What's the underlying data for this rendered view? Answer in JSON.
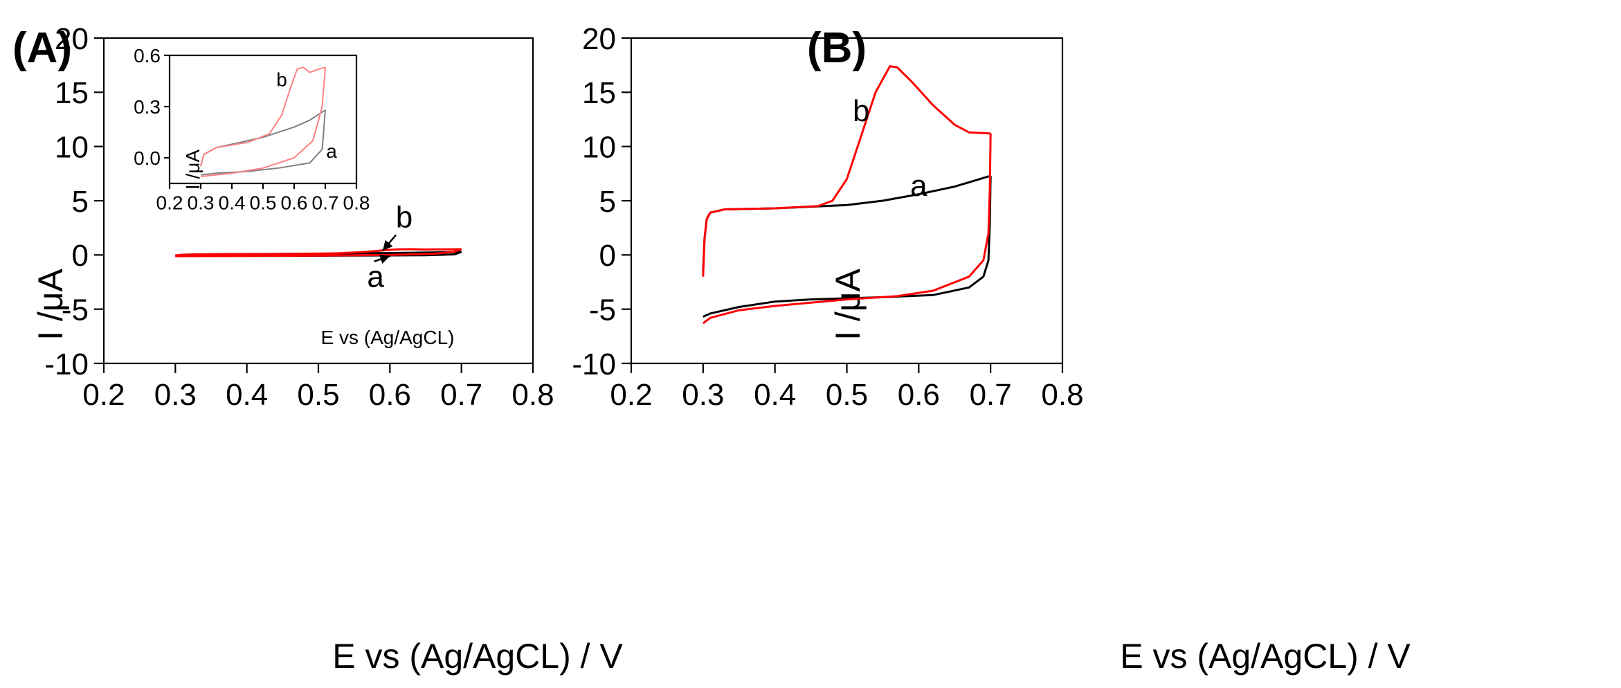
{
  "chart_data": [
    {
      "panel": "(A)",
      "type": "line",
      "xlabel": "E vs (Ag/AgCL) / V",
      "ylabel": "I /μA",
      "xlim": [
        0.2,
        0.8
      ],
      "ylim": [
        -10,
        20
      ],
      "xticks": [
        "0.2",
        "0.3",
        "0.4",
        "0.5",
        "0.6",
        "0.7",
        "0.8"
      ],
      "yticks": [
        "-10",
        "-5",
        "0",
        "5",
        "10",
        "15",
        "20"
      ],
      "series": [
        {
          "name": "a",
          "color": "#000000",
          "forward": [
            [
              0.3,
              -0.05
            ],
            [
              0.31,
              0.02
            ],
            [
              0.35,
              0.06
            ],
            [
              0.4,
              0.08
            ],
            [
              0.5,
              0.12
            ],
            [
              0.6,
              0.18
            ],
            [
              0.65,
              0.22
            ],
            [
              0.7,
              0.28
            ]
          ],
          "reverse": [
            [
              0.7,
              0.28
            ],
            [
              0.69,
              0.05
            ],
            [
              0.65,
              -0.03
            ],
            [
              0.55,
              -0.06
            ],
            [
              0.45,
              -0.08
            ],
            [
              0.35,
              -0.09
            ],
            [
              0.3,
              -0.1
            ]
          ]
        },
        {
          "name": "b",
          "color": "#ff0000",
          "forward": [
            [
              0.3,
              -0.05
            ],
            [
              0.31,
              0.02
            ],
            [
              0.35,
              0.06
            ],
            [
              0.45,
              0.09
            ],
            [
              0.52,
              0.14
            ],
            [
              0.56,
              0.25
            ],
            [
              0.59,
              0.42
            ],
            [
              0.61,
              0.52
            ],
            [
              0.63,
              0.53
            ],
            [
              0.65,
              0.5
            ],
            [
              0.68,
              0.52
            ],
            [
              0.7,
              0.53
            ]
          ],
          "reverse": [
            [
              0.7,
              0.53
            ],
            [
              0.69,
              0.3
            ],
            [
              0.66,
              0.1
            ],
            [
              0.6,
              0.0
            ],
            [
              0.5,
              -0.06
            ],
            [
              0.4,
              -0.09
            ],
            [
              0.3,
              -0.11
            ]
          ]
        }
      ],
      "annotations": [
        {
          "text": "b",
          "x": 0.62,
          "y": 3.5,
          "arrow_to": [
            0.59,
            0.4
          ]
        },
        {
          "text": "a",
          "x": 0.58,
          "y": -2.0,
          "arrow_to": [
            0.6,
            -0.1
          ]
        }
      ],
      "inset": {
        "xlabel": "E vs (Ag/AgCL)",
        "ylabel": "I /μA",
        "xlim": [
          0.2,
          0.8
        ],
        "ylim": [
          -0.15,
          0.6
        ],
        "xticks": [
          "0.2",
          "0.3",
          "0.4",
          "0.5",
          "0.6",
          "0.7",
          "0.8"
        ],
        "yticks": [
          "0.0",
          "0.3",
          "0.6"
        ],
        "series_colors": {
          "a": "#808080",
          "b": "#ff8080"
        },
        "labels": [
          {
            "text": "b",
            "x": 0.56,
            "y": 0.46
          },
          {
            "text": "a",
            "x": 0.72,
            "y": 0.04
          }
        ]
      }
    },
    {
      "panel": "(B)",
      "type": "line",
      "xlabel": "E vs (Ag/AgCL) / V",
      "ylabel": "I /μA",
      "xlim": [
        0.2,
        0.8
      ],
      "ylim": [
        -10,
        20
      ],
      "xticks": [
        "0.2",
        "0.3",
        "0.4",
        "0.5",
        "0.6",
        "0.7",
        "0.8"
      ],
      "yticks": [
        "-10",
        "-5",
        "0",
        "5",
        "10",
        "15",
        "20"
      ],
      "series": [
        {
          "name": "a",
          "color": "#000000",
          "forward": [
            [
              0.3,
              -1.5
            ],
            [
              0.302,
              1.5
            ],
            [
              0.305,
              3.3
            ],
            [
              0.31,
              3.9
            ],
            [
              0.33,
              4.2
            ],
            [
              0.4,
              4.3
            ],
            [
              0.5,
              4.6
            ],
            [
              0.55,
              5.0
            ],
            [
              0.6,
              5.6
            ],
            [
              0.65,
              6.3
            ],
            [
              0.7,
              7.3
            ]
          ],
          "reverse": [
            [
              0.7,
              7.3
            ],
            [
              0.699,
              3.0
            ],
            [
              0.697,
              -0.5
            ],
            [
              0.69,
              -2.0
            ],
            [
              0.67,
              -3.0
            ],
            [
              0.62,
              -3.7
            ],
            [
              0.55,
              -3.9
            ],
            [
              0.45,
              -4.1
            ],
            [
              0.4,
              -4.3
            ],
            [
              0.35,
              -4.8
            ],
            [
              0.31,
              -5.4
            ],
            [
              0.3,
              -5.7
            ]
          ]
        },
        {
          "name": "b",
          "color": "#ff0000",
          "forward": [
            [
              0.3,
              -2.0
            ],
            [
              0.302,
              1.5
            ],
            [
              0.305,
              3.3
            ],
            [
              0.31,
              3.9
            ],
            [
              0.33,
              4.2
            ],
            [
              0.4,
              4.3
            ],
            [
              0.46,
              4.5
            ],
            [
              0.48,
              5.0
            ],
            [
              0.5,
              7.0
            ],
            [
              0.52,
              11.0
            ],
            [
              0.54,
              15.0
            ],
            [
              0.56,
              17.4
            ],
            [
              0.57,
              17.3
            ],
            [
              0.59,
              16.0
            ],
            [
              0.62,
              13.8
            ],
            [
              0.65,
              12.0
            ],
            [
              0.67,
              11.3
            ],
            [
              0.7,
              11.2
            ]
          ],
          "reverse": [
            [
              0.7,
              11.2
            ],
            [
              0.699,
              6.0
            ],
            [
              0.697,
              2.0
            ],
            [
              0.69,
              -0.5
            ],
            [
              0.67,
              -2.0
            ],
            [
              0.62,
              -3.3
            ],
            [
              0.57,
              -3.8
            ],
            [
              0.5,
              -4.1
            ],
            [
              0.45,
              -4.4
            ],
            [
              0.4,
              -4.7
            ],
            [
              0.35,
              -5.1
            ],
            [
              0.31,
              -5.8
            ],
            [
              0.3,
              -6.3
            ]
          ]
        }
      ],
      "annotations": [
        {
          "text": "b",
          "x": 0.52,
          "y": 13.3
        },
        {
          "text": "a",
          "x": 0.6,
          "y": 6.4
        }
      ]
    }
  ]
}
